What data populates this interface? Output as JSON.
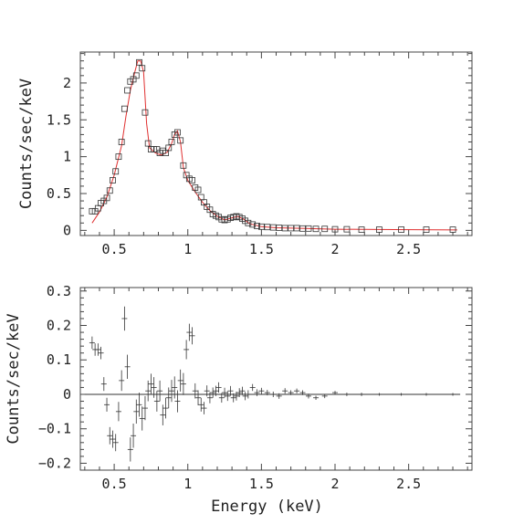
{
  "chart_data": [
    {
      "type": "scatter",
      "xlabel": "",
      "ylabel": "Counts/sec/keV",
      "xlim": [
        0.27,
        2.93
      ],
      "ylim": [
        -0.07,
        2.42
      ],
      "xticks": [
        {
          "v": 0.5,
          "label": "0.5"
        },
        {
          "v": 1,
          "label": "1"
        },
        {
          "v": 1.5,
          "label": "1.5"
        },
        {
          "v": 2,
          "label": "2"
        },
        {
          "v": 2.5,
          "label": "2.5"
        }
      ],
      "yticks": [
        {
          "v": 0,
          "label": "0"
        },
        {
          "v": 0.5,
          "label": "0.5"
        },
        {
          "v": 1,
          "label": "1"
        },
        {
          "v": 1.5,
          "label": "1.5"
        },
        {
          "v": 2,
          "label": "2"
        }
      ],
      "colors": {
        "data": "#333333",
        "model": "#e03030"
      },
      "data_points": [
        [
          0.35,
          0.26
        ],
        [
          0.37,
          0.26
        ],
        [
          0.39,
          0.3
        ],
        [
          0.41,
          0.37
        ],
        [
          0.43,
          0.4
        ],
        [
          0.45,
          0.44
        ],
        [
          0.47,
          0.54
        ],
        [
          0.49,
          0.68
        ],
        [
          0.51,
          0.8
        ],
        [
          0.53,
          1.0
        ],
        [
          0.55,
          1.2
        ],
        [
          0.57,
          1.65
        ],
        [
          0.59,
          1.9
        ],
        [
          0.61,
          2.02
        ],
        [
          0.63,
          2.05
        ],
        [
          0.65,
          2.1
        ],
        [
          0.67,
          2.28
        ],
        [
          0.69,
          2.2
        ],
        [
          0.71,
          1.6
        ],
        [
          0.73,
          1.18
        ],
        [
          0.75,
          1.1
        ],
        [
          0.77,
          1.1
        ],
        [
          0.79,
          1.1
        ],
        [
          0.81,
          1.05
        ],
        [
          0.83,
          1.08
        ],
        [
          0.85,
          1.05
        ],
        [
          0.87,
          1.12
        ],
        [
          0.89,
          1.2
        ],
        [
          0.91,
          1.3
        ],
        [
          0.93,
          1.33
        ],
        [
          0.95,
          1.22
        ],
        [
          0.97,
          0.88
        ],
        [
          0.99,
          0.75
        ],
        [
          1.01,
          0.7
        ],
        [
          1.03,
          0.68
        ],
        [
          1.05,
          0.58
        ],
        [
          1.07,
          0.55
        ],
        [
          1.09,
          0.45
        ],
        [
          1.11,
          0.38
        ],
        [
          1.13,
          0.32
        ],
        [
          1.15,
          0.28
        ],
        [
          1.17,
          0.22
        ],
        [
          1.19,
          0.2
        ],
        [
          1.21,
          0.18
        ],
        [
          1.23,
          0.15
        ],
        [
          1.25,
          0.14
        ],
        [
          1.27,
          0.15
        ],
        [
          1.29,
          0.17
        ],
        [
          1.31,
          0.18
        ],
        [
          1.33,
          0.19
        ],
        [
          1.35,
          0.18
        ],
        [
          1.37,
          0.16
        ],
        [
          1.39,
          0.13
        ],
        [
          1.41,
          0.1
        ],
        [
          1.44,
          0.08
        ],
        [
          1.47,
          0.06
        ],
        [
          1.5,
          0.05
        ],
        [
          1.54,
          0.045
        ],
        [
          1.58,
          0.04
        ],
        [
          1.62,
          0.035
        ],
        [
          1.66,
          0.03
        ],
        [
          1.7,
          0.03
        ],
        [
          1.74,
          0.03
        ],
        [
          1.78,
          0.025
        ],
        [
          1.82,
          0.025
        ],
        [
          1.87,
          0.02
        ],
        [
          1.93,
          0.02
        ],
        [
          2.0,
          0.015
        ],
        [
          2.08,
          0.015
        ],
        [
          2.18,
          0.01
        ],
        [
          2.3,
          0.01
        ],
        [
          2.45,
          0.01
        ],
        [
          2.62,
          0.01
        ],
        [
          2.8,
          0.01
        ]
      ],
      "model_points": [
        [
          0.35,
          0.1
        ],
        [
          0.4,
          0.25
        ],
        [
          0.45,
          0.45
        ],
        [
          0.5,
          0.75
        ],
        [
          0.55,
          1.15
        ],
        [
          0.58,
          1.55
        ],
        [
          0.61,
          1.9
        ],
        [
          0.64,
          2.15
        ],
        [
          0.66,
          2.3
        ],
        [
          0.68,
          2.3
        ],
        [
          0.7,
          2.15
        ],
        [
          0.72,
          1.45
        ],
        [
          0.74,
          1.12
        ],
        [
          0.78,
          1.05
        ],
        [
          0.82,
          1.02
        ],
        [
          0.86,
          1.06
        ],
        [
          0.89,
          1.18
        ],
        [
          0.91,
          1.3
        ],
        [
          0.93,
          1.35
        ],
        [
          0.95,
          1.2
        ],
        [
          0.97,
          0.85
        ],
        [
          1.0,
          0.68
        ],
        [
          1.05,
          0.52
        ],
        [
          1.1,
          0.38
        ],
        [
          1.15,
          0.27
        ],
        [
          1.2,
          0.19
        ],
        [
          1.25,
          0.14
        ],
        [
          1.3,
          0.17
        ],
        [
          1.34,
          0.19
        ],
        [
          1.38,
          0.15
        ],
        [
          1.42,
          0.09
        ],
        [
          1.5,
          0.05
        ],
        [
          1.6,
          0.035
        ],
        [
          1.8,
          0.025
        ],
        [
          2.0,
          0.015
        ],
        [
          2.4,
          0.01
        ],
        [
          2.83,
          0.005
        ]
      ]
    },
    {
      "type": "scatter",
      "xlabel": "Energy (keV)",
      "ylabel": "Counts/sec/keV",
      "xlim": [
        0.27,
        2.93
      ],
      "ylim": [
        -0.22,
        0.31
      ],
      "xticks": [
        {
          "v": 0.5,
          "label": "0.5"
        },
        {
          "v": 1,
          "label": "1"
        },
        {
          "v": 1.5,
          "label": "1.5"
        },
        {
          "v": 2,
          "label": "2"
        },
        {
          "v": 2.5,
          "label": "2.5"
        }
      ],
      "yticks": [
        {
          "v": -0.2,
          "label": "−0.2"
        },
        {
          "v": -0.1,
          "label": "−0.1"
        },
        {
          "v": 0,
          "label": "0"
        },
        {
          "v": 0.1,
          "label": "0.1"
        },
        {
          "v": 0.2,
          "label": "0.2"
        },
        {
          "v": 0.3,
          "label": "0.3"
        }
      ],
      "colors": {
        "data": "#333333",
        "zero_line": "#333333"
      },
      "residuals": [
        [
          0.35,
          0.15,
          0.018
        ],
        [
          0.37,
          0.13,
          0.018
        ],
        [
          0.39,
          0.13,
          0.018
        ],
        [
          0.41,
          0.12,
          0.018
        ],
        [
          0.43,
          0.03,
          0.02
        ],
        [
          0.45,
          -0.03,
          0.02
        ],
        [
          0.47,
          -0.12,
          0.025
        ],
        [
          0.49,
          -0.13,
          0.025
        ],
        [
          0.51,
          -0.14,
          0.025
        ],
        [
          0.53,
          -0.05,
          0.028
        ],
        [
          0.55,
          0.04,
          0.03
        ],
        [
          0.57,
          0.22,
          0.035
        ],
        [
          0.59,
          0.08,
          0.035
        ],
        [
          0.61,
          -0.16,
          0.035
        ],
        [
          0.63,
          -0.12,
          0.035
        ],
        [
          0.65,
          -0.05,
          0.035
        ],
        [
          0.67,
          -0.03,
          0.035
        ],
        [
          0.69,
          -0.07,
          0.035
        ],
        [
          0.71,
          -0.04,
          0.035
        ],
        [
          0.73,
          0.01,
          0.03
        ],
        [
          0.75,
          0.03,
          0.03
        ],
        [
          0.77,
          0.02,
          0.03
        ],
        [
          0.79,
          -0.02,
          0.03
        ],
        [
          0.81,
          0.01,
          0.03
        ],
        [
          0.83,
          -0.06,
          0.03
        ],
        [
          0.85,
          -0.04,
          0.03
        ],
        [
          0.87,
          -0.01,
          0.03
        ],
        [
          0.89,
          0.01,
          0.032
        ],
        [
          0.91,
          0.02,
          0.032
        ],
        [
          0.93,
          -0.02,
          0.032
        ],
        [
          0.95,
          0.04,
          0.032
        ],
        [
          0.97,
          0.03,
          0.032
        ],
        [
          0.99,
          0.13,
          0.028
        ],
        [
          1.01,
          0.18,
          0.025
        ],
        [
          1.03,
          0.17,
          0.025
        ],
        [
          1.05,
          0.01,
          0.022
        ],
        [
          1.07,
          -0.01,
          0.022
        ],
        [
          1.09,
          -0.03,
          0.02
        ],
        [
          1.11,
          -0.04,
          0.018
        ],
        [
          1.13,
          0.01,
          0.016
        ],
        [
          1.15,
          -0.01,
          0.016
        ],
        [
          1.17,
          0.005,
          0.015
        ],
        [
          1.19,
          0.01,
          0.015
        ],
        [
          1.21,
          0.02,
          0.015
        ],
        [
          1.23,
          -0.01,
          0.014
        ],
        [
          1.25,
          0.005,
          0.014
        ],
        [
          1.27,
          -0.005,
          0.014
        ],
        [
          1.29,
          0.01,
          0.014
        ],
        [
          1.31,
          -0.01,
          0.013
        ],
        [
          1.33,
          -0.005,
          0.013
        ],
        [
          1.35,
          0.005,
          0.013
        ],
        [
          1.37,
          0.01,
          0.012
        ],
        [
          1.39,
          -0.005,
          0.012
        ],
        [
          1.41,
          0.0,
          0.012
        ],
        [
          1.44,
          0.02,
          0.01
        ],
        [
          1.47,
          0.005,
          0.01
        ],
        [
          1.5,
          0.01,
          0.009
        ],
        [
          1.54,
          0.005,
          0.008
        ],
        [
          1.58,
          0.0,
          0.008
        ],
        [
          1.62,
          -0.005,
          0.008
        ],
        [
          1.66,
          0.01,
          0.008
        ],
        [
          1.7,
          0.005,
          0.007
        ],
        [
          1.74,
          0.01,
          0.007
        ],
        [
          1.78,
          0.005,
          0.007
        ],
        [
          1.82,
          -0.005,
          0.007
        ],
        [
          1.87,
          -0.01,
          0.006
        ],
        [
          1.93,
          -0.005,
          0.006
        ],
        [
          2.0,
          0.005,
          0.005
        ],
        [
          2.08,
          0.0,
          0.005
        ],
        [
          2.18,
          0.0,
          0.005
        ],
        [
          2.3,
          0.0,
          0.004
        ],
        [
          2.45,
          0.0,
          0.004
        ],
        [
          2.62,
          0.0,
          0.004
        ],
        [
          2.8,
          0.0,
          0.004
        ]
      ]
    }
  ]
}
